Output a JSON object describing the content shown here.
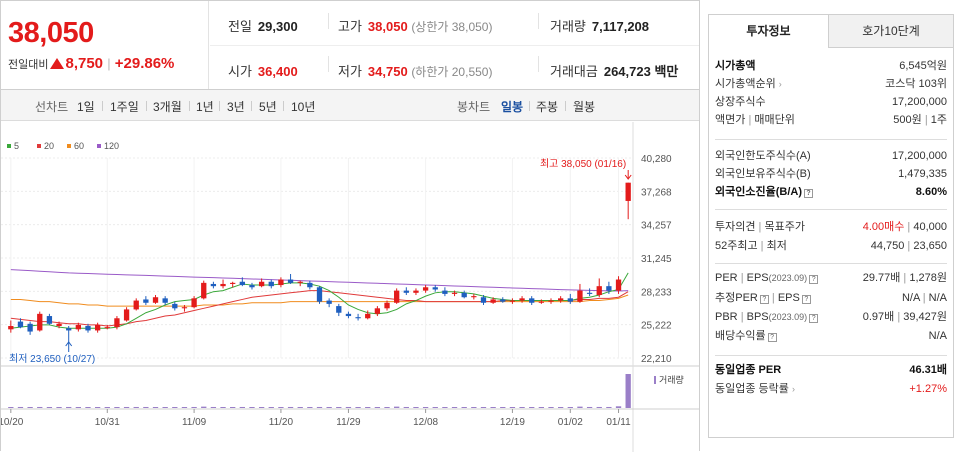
{
  "header": {
    "price": "38,050",
    "change_label": "전일대비",
    "change_value": "8,750",
    "change_sep": "|",
    "change_pct": "+29.86%",
    "prev_label": "전일",
    "prev_value": "29,300",
    "high_label": "고가",
    "high_value": "38,050",
    "upper_limit": "(상한가 38,050)",
    "volume_label": "거래량",
    "volume_value": "7,117,208",
    "open_label": "시가",
    "open_value": "36,400",
    "low_label": "저가",
    "low_value": "34,750",
    "lower_limit": "(하한가 20,550)",
    "amount_label": "거래대금",
    "amount_value": "264,723",
    "amount_unit": "백만"
  },
  "toolbar": {
    "line_label": "선차트",
    "periods": [
      "1일",
      "1주일",
      "3개월",
      "1년",
      "3년",
      "5년",
      "10년"
    ],
    "candle_label": "봉차트",
    "candle_periods": [
      "일봉",
      "주봉",
      "월봉"
    ],
    "active_candle": "일봉"
  },
  "chart_data": {
    "type": "candlestick",
    "legend": [
      "5",
      "20",
      "60",
      "120"
    ],
    "legend_colors": [
      "#3aa83a",
      "#e03a3a",
      "#f08c1e",
      "#9a5bc8"
    ],
    "y_ticks": [
      "40,280",
      "37,268",
      "34,257",
      "31,245",
      "28,233",
      "25,222",
      "22,210"
    ],
    "x_ticks": [
      "10/20",
      "10/31",
      "11/09",
      "11/20",
      "11/29",
      "12/08",
      "12/19",
      "01/02",
      "01/11"
    ],
    "high_annotation": "최고 38,050 (01/16)",
    "low_annotation": "최저 23,650 (10/27)",
    "volume_label": "거래량",
    "ylim": [
      22210,
      40280
    ],
    "candles": [
      {
        "o": 24800,
        "c": 25100,
        "h": 25600,
        "l": 24500
      },
      {
        "o": 25500,
        "c": 25000,
        "h": 25800,
        "l": 24900
      },
      {
        "o": 25300,
        "c": 24600,
        "h": 25500,
        "l": 24300
      },
      {
        "o": 24700,
        "c": 26200,
        "h": 26400,
        "l": 24600
      },
      {
        "o": 26000,
        "c": 25300,
        "h": 26200,
        "l": 25200
      },
      {
        "o": 25100,
        "c": 25300,
        "h": 25500,
        "l": 24900
      },
      {
        "o": 24900,
        "c": 24700,
        "h": 25100,
        "l": 23650
      },
      {
        "o": 24800,
        "c": 25200,
        "h": 25400,
        "l": 24600
      },
      {
        "o": 25100,
        "c": 24700,
        "h": 25300,
        "l": 24500
      },
      {
        "o": 24700,
        "c": 25200,
        "h": 25400,
        "l": 24500
      },
      {
        "o": 25000,
        "c": 25000,
        "h": 25200,
        "l": 24800
      },
      {
        "o": 25000,
        "c": 25800,
        "h": 26000,
        "l": 24800
      },
      {
        "o": 25600,
        "c": 26600,
        "h": 26800,
        "l": 25500
      },
      {
        "o": 26600,
        "c": 27400,
        "h": 27600,
        "l": 26500
      },
      {
        "o": 27500,
        "c": 27200,
        "h": 27800,
        "l": 27000
      },
      {
        "o": 27200,
        "c": 27700,
        "h": 27900,
        "l": 27100
      },
      {
        "o": 27600,
        "c": 27200,
        "h": 27800,
        "l": 27000
      },
      {
        "o": 27100,
        "c": 26700,
        "h": 27300,
        "l": 26500
      },
      {
        "o": 26700,
        "c": 26800,
        "h": 27000,
        "l": 26400
      },
      {
        "o": 26800,
        "c": 27600,
        "h": 27800,
        "l": 26700
      },
      {
        "o": 27600,
        "c": 29000,
        "h": 29200,
        "l": 27500
      },
      {
        "o": 28900,
        "c": 28700,
        "h": 29100,
        "l": 28500
      },
      {
        "o": 28700,
        "c": 28900,
        "h": 29300,
        "l": 28500
      },
      {
        "o": 28900,
        "c": 29000,
        "h": 29100,
        "l": 28600
      },
      {
        "o": 29100,
        "c": 28800,
        "h": 29500,
        "l": 28700
      },
      {
        "o": 28800,
        "c": 28600,
        "h": 29000,
        "l": 28400
      },
      {
        "o": 28700,
        "c": 29100,
        "h": 29400,
        "l": 28600
      },
      {
        "o": 29100,
        "c": 28700,
        "h": 29300,
        "l": 28500
      },
      {
        "o": 28800,
        "c": 29300,
        "h": 29500,
        "l": 28600
      },
      {
        "o": 29300,
        "c": 29000,
        "h": 29800,
        "l": 28900
      },
      {
        "o": 29000,
        "c": 29100,
        "h": 29200,
        "l": 28700
      },
      {
        "o": 29000,
        "c": 28600,
        "h": 29200,
        "l": 28400
      },
      {
        "o": 28600,
        "c": 27300,
        "h": 28700,
        "l": 27100
      },
      {
        "o": 27400,
        "c": 27100,
        "h": 27600,
        "l": 26800
      },
      {
        "o": 26900,
        "c": 26300,
        "h": 27100,
        "l": 26000
      },
      {
        "o": 26200,
        "c": 26000,
        "h": 26400,
        "l": 25800
      },
      {
        "o": 25900,
        "c": 25800,
        "h": 26200,
        "l": 25600
      },
      {
        "o": 25800,
        "c": 26200,
        "h": 26500,
        "l": 25700
      },
      {
        "o": 26200,
        "c": 26700,
        "h": 26900,
        "l": 26000
      },
      {
        "o": 26700,
        "c": 27200,
        "h": 27400,
        "l": 26500
      },
      {
        "o": 27200,
        "c": 28300,
        "h": 28500,
        "l": 27100
      },
      {
        "o": 28300,
        "c": 28100,
        "h": 28600,
        "l": 27900
      },
      {
        "o": 28100,
        "c": 28300,
        "h": 28500,
        "l": 27900
      },
      {
        "o": 28300,
        "c": 28600,
        "h": 28800,
        "l": 28100
      },
      {
        "o": 28600,
        "c": 28400,
        "h": 28800,
        "l": 28200
      },
      {
        "o": 28300,
        "c": 28000,
        "h": 28600,
        "l": 27800
      },
      {
        "o": 28000,
        "c": 28100,
        "h": 28300,
        "l": 27800
      },
      {
        "o": 28100,
        "c": 27700,
        "h": 28300,
        "l": 27600
      },
      {
        "o": 27700,
        "c": 27800,
        "h": 28000,
        "l": 27500
      },
      {
        "o": 27700,
        "c": 27200,
        "h": 27900,
        "l": 27000
      },
      {
        "o": 27200,
        "c": 27500,
        "h": 27700,
        "l": 27100
      },
      {
        "o": 27500,
        "c": 27300,
        "h": 27700,
        "l": 27200
      },
      {
        "o": 27300,
        "c": 27400,
        "h": 27600,
        "l": 27100
      },
      {
        "o": 27400,
        "c": 27600,
        "h": 27800,
        "l": 27200
      },
      {
        "o": 27600,
        "c": 27200,
        "h": 27800,
        "l": 27000
      },
      {
        "o": 27200,
        "c": 27300,
        "h": 27500,
        "l": 27100
      },
      {
        "o": 27300,
        "c": 27400,
        "h": 27600,
        "l": 27100
      },
      {
        "o": 27400,
        "c": 27600,
        "h": 27800,
        "l": 27200
      },
      {
        "o": 27600,
        "c": 27300,
        "h": 28000,
        "l": 27100
      },
      {
        "o": 27300,
        "c": 28300,
        "h": 28900,
        "l": 27200
      },
      {
        "o": 28100,
        "c": 28000,
        "h": 28500,
        "l": 27800
      },
      {
        "o": 27900,
        "c": 28700,
        "h": 29400,
        "l": 27700
      },
      {
        "o": 28700,
        "c": 28300,
        "h": 29100,
        "l": 28000
      },
      {
        "o": 28300,
        "c": 29300,
        "h": 29600,
        "l": 28000
      },
      {
        "o": 36400,
        "c": 38050,
        "h": 38050,
        "l": 34750
      }
    ],
    "volumes": [
      2,
      3,
      2,
      3,
      2,
      2,
      3,
      2,
      2,
      2,
      2,
      2,
      3,
      3,
      3,
      2,
      2,
      2,
      2,
      3,
      4,
      3,
      2,
      2,
      3,
      2,
      2,
      2,
      2,
      3,
      2,
      2,
      3,
      2,
      2,
      3,
      2,
      2,
      2,
      2,
      4,
      3,
      2,
      2,
      2,
      2,
      2,
      2,
      2,
      2,
      2,
      2,
      2,
      2,
      2,
      2,
      2,
      2,
      2,
      4,
      3,
      3,
      3,
      5,
      100
    ],
    "ma5": [
      24900,
      25000,
      25100,
      25200,
      25200,
      25000,
      24900,
      24900,
      24900,
      24900,
      24900,
      25000,
      25300,
      25800,
      26300,
      26600,
      27000,
      27300,
      27400,
      27500,
      27900,
      28200,
      28300,
      28600,
      28900,
      28800,
      28800,
      28800,
      28900,
      29000,
      29000,
      28900,
      28700,
      28300,
      27700,
      27000,
      26600,
      26300,
      26200,
      26300,
      26600,
      27100,
      27400,
      27800,
      28100,
      28200,
      28200,
      28100,
      28000,
      27800,
      27600,
      27500,
      27400,
      27400,
      27400,
      27400,
      27400,
      27400,
      27400,
      27600,
      27700,
      27900,
      28200,
      28400,
      29900
    ],
    "ma20": [
      25800,
      25700,
      25600,
      25500,
      25500,
      25400,
      25300,
      25300,
      25200,
      25200,
      25100,
      25200,
      25300,
      25500,
      25600,
      25800,
      26000,
      26100,
      26300,
      26500,
      26700,
      26900,
      27100,
      27300,
      27500,
      27700,
      27800,
      27900,
      28000,
      28100,
      28200,
      28300,
      28300,
      28200,
      28100,
      28000,
      27900,
      27800,
      27700,
      27600,
      27500,
      27400,
      27400,
      27300,
      27300,
      27300,
      27300,
      27300,
      27300,
      27300,
      27300,
      27400,
      27400,
      27400,
      27400,
      27400,
      27400,
      27400,
      27400,
      27500,
      27500,
      27600,
      27600,
      27700,
      28200
    ],
    "ma60": [
      27500,
      27500,
      27400,
      27300,
      27300,
      27200,
      27100,
      27100,
      27000,
      27000,
      26900,
      26900,
      26900,
      26900,
      26900,
      26900,
      26900,
      26900,
      26900,
      26900,
      27000,
      27000,
      27000,
      27100,
      27100,
      27200,
      27200,
      27200,
      27200,
      27300,
      27300,
      27300,
      27300,
      27300,
      27300,
      27300,
      27300,
      27300,
      27300,
      27300,
      27300,
      27300,
      27300,
      27300,
      27300,
      27300,
      27300,
      27300,
      27300,
      27300,
      27300,
      27300,
      27300,
      27300,
      27300,
      27300,
      27300,
      27300,
      27300,
      27300,
      27400,
      27400,
      27500,
      27600,
      27900
    ],
    "ma120": [
      30200,
      30150,
      30100,
      30050,
      30000,
      29950,
      29900,
      29870,
      29840,
      29810,
      29780,
      29750,
      29720,
      29700,
      29670,
      29640,
      29610,
      29580,
      29550,
      29520,
      29500,
      29470,
      29440,
      29410,
      29380,
      29350,
      29320,
      29290,
      29260,
      29230,
      29200,
      29170,
      29140,
      29110,
      29080,
      29050,
      29020,
      28990,
      28960,
      28930,
      28900,
      28870,
      28840,
      28810,
      28780,
      28750,
      28720,
      28690,
      28660,
      28630,
      28600,
      28570,
      28540,
      28510,
      28480,
      28450,
      28420,
      28390,
      28360,
      28340,
      28320,
      28300,
      28280,
      28260,
      28300
    ]
  },
  "right_panel": {
    "tab_active": "투자정보",
    "tab_other": "호가10단계",
    "market_cap_label": "시가총액",
    "market_cap_value": "6,545억원",
    "rank_label": "시가총액순위",
    "rank_value": "코스닥 103위",
    "shares_label": "상장주식수",
    "shares_value": "17,200,000",
    "par_label": "액면가",
    "par_sep": "|",
    "unit_label": "매매단위",
    "par_value": "500원",
    "unit_value": "1주",
    "foreign_limit_label": "외국인한도주식수(A)",
    "foreign_limit_value": "17,200,000",
    "foreign_hold_label": "외국인보유주식수(B)",
    "foreign_hold_value": "1,479,335",
    "foreign_ratio_label": "외국인소진율(B/A)",
    "foreign_ratio_value": "8.60%",
    "opinion_label": "투자의견",
    "target_label": "목표주가",
    "opinion_value": "4.00매수",
    "target_value": "40,000",
    "w52_high_label": "52주최고",
    "w52_low_label": "최저",
    "w52_high_value": "44,750",
    "w52_low_value": "23,650",
    "per_label": "PER",
    "eps_label": "EPS",
    "eps_year": "(2023.09)",
    "per_value": "29.77배",
    "eps_value": "1,278원",
    "est_per_label": "추정PER",
    "est_eps_label": "EPS",
    "est_per_value": "N/A",
    "est_eps_value": "N/A",
    "pbr_label": "PBR",
    "bps_label": "BPS",
    "bps_year": "(2023.09)",
    "pbr_value": "0.97배",
    "bps_value": "39,427원",
    "div_label": "배당수익률",
    "div_value": "N/A",
    "peer_per_label": "동일업종 PER",
    "peer_per_value": "46.31배",
    "peer_rate_label": "동일업종 등락률",
    "peer_rate_value": "+1.27%"
  }
}
